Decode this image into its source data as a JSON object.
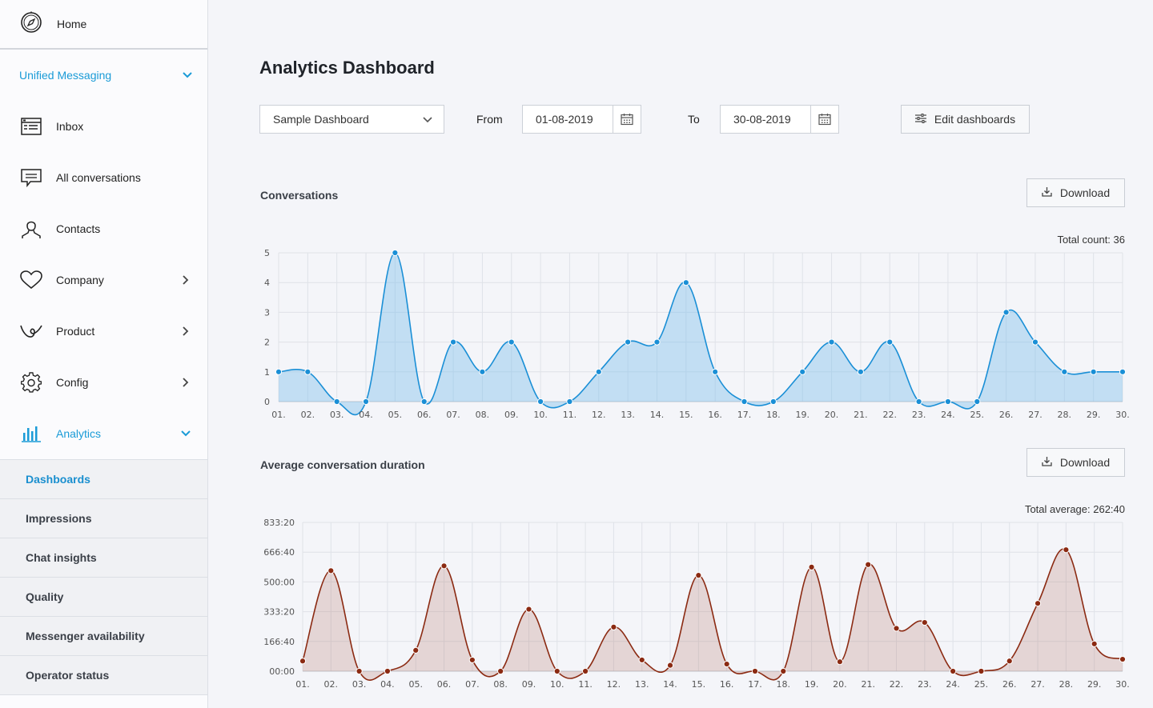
{
  "sidebar": {
    "home": "Home",
    "section": "Unified Messaging",
    "items": [
      {
        "label": "Inbox",
        "icon": "inbox-icon"
      },
      {
        "label": "All conversations",
        "icon": "chat-icon"
      },
      {
        "label": "Contacts",
        "icon": "person-icon"
      },
      {
        "label": "Company",
        "icon": "heart-icon"
      },
      {
        "label": "Product",
        "icon": "product-icon"
      },
      {
        "label": "Config",
        "icon": "gear-icon"
      },
      {
        "label": "Analytics",
        "icon": "bar-chart-icon"
      }
    ],
    "analytics_sub": [
      "Dashboards",
      "Impressions",
      "Chat insights",
      "Quality",
      "Messenger availability",
      "Operator status"
    ]
  },
  "header": {
    "title": "Analytics Dashboard",
    "dashboard_select": "Sample Dashboard",
    "from_label": "From",
    "from_value": "01-08-2019",
    "to_label": "To",
    "to_value": "30-08-2019",
    "edit_label": "Edit dashboards"
  },
  "conversations": {
    "title": "Conversations",
    "download": "Download",
    "total": "Total count: 36"
  },
  "duration": {
    "title": "Average conversation duration",
    "download": "Download",
    "total": "Total average: 262:40"
  },
  "colors": {
    "accent": "#1a9bd7",
    "series1": "#1a8fd6",
    "series2": "#8b2a12"
  },
  "chart_data": [
    {
      "type": "area",
      "title": "Conversations",
      "categories": [
        "01.",
        "02.",
        "03.",
        "04.",
        "05.",
        "06.",
        "07.",
        "08.",
        "09.",
        "10.",
        "11.",
        "12.",
        "13.",
        "14.",
        "15.",
        "16.",
        "17.",
        "18.",
        "19.",
        "20.",
        "21.",
        "22.",
        "23.",
        "24.",
        "25.",
        "26.",
        "27.",
        "28.",
        "29.",
        "30."
      ],
      "values": [
        1,
        1,
        0,
        0,
        5,
        0,
        2,
        1,
        2,
        0,
        0,
        1,
        2,
        2,
        4,
        1,
        0,
        0,
        1,
        2,
        1,
        2,
        0,
        0,
        0,
        3,
        2,
        1,
        1,
        1
      ],
      "yticks": [
        "0",
        "1",
        "2",
        "3",
        "4",
        "5"
      ],
      "ylim": [
        0,
        5
      ],
      "grid": true
    },
    {
      "type": "area",
      "title": "Average conversation duration",
      "categories": [
        "01.",
        "02.",
        "03.",
        "04.",
        "05.",
        "06.",
        "07.",
        "08.",
        "09.",
        "10.",
        "11.",
        "12.",
        "13.",
        "14.",
        "15.",
        "16.",
        "17.",
        "18.",
        "19.",
        "20.",
        "21.",
        "22.",
        "23.",
        "24.",
        "25.",
        "26.",
        "27.",
        "28.",
        "29.",
        "30."
      ],
      "values": [
        57,
        563,
        0,
        0,
        117,
        590,
        63,
        0,
        347,
        0,
        0,
        247,
        63,
        33,
        537,
        40,
        0,
        0,
        583,
        53,
        597,
        240,
        273,
        0,
        0,
        57,
        380,
        680,
        153,
        67
      ],
      "yticks": [
        "00:00",
        "166:40",
        "333:20",
        "500:00",
        "666:40",
        "833:20"
      ],
      "ylim": [
        0,
        833.33
      ],
      "grid": true
    }
  ]
}
